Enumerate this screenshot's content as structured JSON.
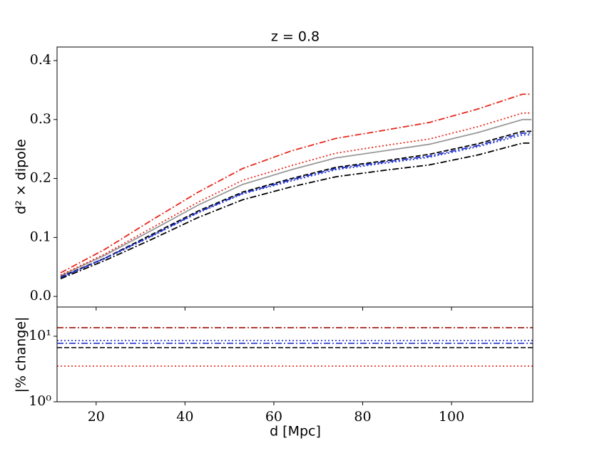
{
  "chart_data": [
    {
      "type": "line",
      "title": "z = 0.8",
      "ylabel": "d² × dipole",
      "x": [
        12,
        22,
        32,
        43,
        53,
        64,
        74,
        85,
        95,
        106,
        116,
        118
      ],
      "series": [
        {
          "color": "#999999",
          "style": "solid",
          "values": [
            0.035,
            0.07,
            0.11,
            0.155,
            0.19,
            0.215,
            0.235,
            0.247,
            0.258,
            0.278,
            0.3,
            0.3
          ]
        },
        {
          "color": "#e8271b",
          "style": "dashdot",
          "values": [
            0.04,
            0.08,
            0.127,
            0.177,
            0.217,
            0.247,
            0.268,
            0.282,
            0.295,
            0.318,
            0.343,
            0.343
          ]
        },
        {
          "color": "#e8271b",
          "style": "dotted",
          "values": [
            0.036,
            0.072,
            0.114,
            0.16,
            0.197,
            0.222,
            0.243,
            0.256,
            0.267,
            0.288,
            0.311,
            0.311
          ]
        },
        {
          "color": "#000000",
          "style": "dashed",
          "values": [
            0.033,
            0.065,
            0.103,
            0.145,
            0.177,
            0.2,
            0.219,
            0.23,
            0.241,
            0.259,
            0.28,
            0.28
          ]
        },
        {
          "color": "#2233cc",
          "style": "dashdot",
          "values": [
            0.032,
            0.065,
            0.101,
            0.143,
            0.175,
            0.198,
            0.217,
            0.228,
            0.238,
            0.256,
            0.277,
            0.277
          ]
        },
        {
          "color": "#2233cc",
          "style": "dotted",
          "values": [
            0.032,
            0.064,
            0.1,
            0.142,
            0.174,
            0.196,
            0.215,
            0.226,
            0.236,
            0.254,
            0.274,
            0.274
          ]
        },
        {
          "color": "#000000",
          "style": "dashdot",
          "values": [
            0.03,
            0.061,
            0.095,
            0.134,
            0.164,
            0.186,
            0.203,
            0.214,
            0.223,
            0.24,
            0.26,
            0.26
          ]
        }
      ],
      "xlim": [
        11.2,
        118.3
      ],
      "ylim": [
        -0.018,
        0.423
      ],
      "xticks": [
        20,
        40,
        60,
        80,
        100
      ],
      "yticks": [
        {
          "value": 0,
          "label": "0.0"
        },
        0.1,
        0.2,
        0.3,
        0.4
      ]
    },
    {
      "type": "hline",
      "xlabel": "d [Mpc]",
      "ylabel": "|% change|",
      "log_y": true,
      "series": [
        {
          "color": "#000000",
          "style": "dashdot",
          "value": 13.5
        },
        {
          "color": "#e8271b",
          "style": "dashdot",
          "value": 13.5
        },
        {
          "color": "#2233cc",
          "style": "dotted",
          "value": 8.6
        },
        {
          "color": "#2233cc",
          "style": "dashdot",
          "value": 7.8
        },
        {
          "color": "#000000",
          "style": "dashed",
          "value": 6.7
        },
        {
          "color": "#e8271b",
          "style": "dotted",
          "value": 3.5
        }
      ],
      "xlim": [
        11.2,
        118.3
      ],
      "ylim": [
        1,
        27.9
      ],
      "xticks": [
        20,
        40,
        60,
        80,
        100
      ],
      "yticks": [
        {
          "value": 1,
          "label": "10⁰"
        },
        {
          "value": 10,
          "label": "10¹"
        }
      ]
    }
  ]
}
